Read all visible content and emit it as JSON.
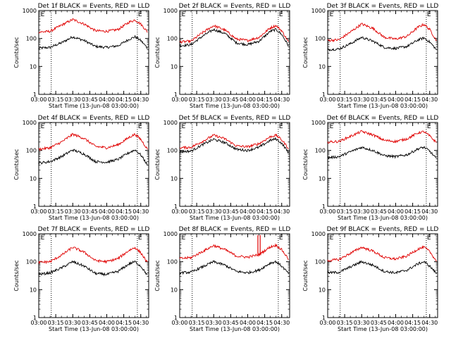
{
  "figure": {
    "colors": {
      "events": "#000000",
      "lld": "#e00000",
      "axis": "#000000",
      "marker": "#000000"
    },
    "xlabel": "Start Time (13-Jun-08 03:00:00)",
    "ylabel": "Counts/sec"
  },
  "chart_data": [
    {
      "type": "line",
      "title": "Det 1f BLACK = Events, RED = LLD",
      "xlabel": "Start Time (13-Jun-08 03:00:00)",
      "ylabel": "Counts/sec",
      "yscale": "log",
      "ylim": [
        1,
        1000
      ],
      "yticks": [
        "1",
        "10",
        "100",
        "1000"
      ],
      "xticks": [
        "03:00",
        "03:15",
        "03:30",
        "03:45",
        "04:00",
        "04:15",
        "04:30"
      ],
      "xlim": [
        "03:00",
        "04:37"
      ],
      "markers": [
        {
          "time": "03:11",
          "label": ""
        },
        {
          "time": "04:27",
          "label": "E"
        },
        {
          "time": "03:01",
          "label": "E"
        }
      ],
      "x": [
        "03:00",
        "03:10",
        "03:20",
        "03:30",
        "03:40",
        "03:50",
        "04:00",
        "04:10",
        "04:20",
        "04:25",
        "04:30",
        "04:36"
      ],
      "series": [
        {
          "name": "BLACK = Events",
          "color": "#000000",
          "values": [
            45,
            48,
            70,
            115,
            85,
            52,
            48,
            55,
            95,
            115,
            85,
            45
          ]
        },
        {
          "name": "RED = LLD",
          "color": "#e00000",
          "values": [
            170,
            180,
            300,
            480,
            330,
            190,
            180,
            210,
            390,
            460,
            330,
            170
          ]
        }
      ]
    },
    {
      "type": "line",
      "title": "Det 2f BLACK = Events, RED = LLD",
      "xlabel": "Start Time (13-Jun-08 03:00:00)",
      "ylabel": "Counts/sec",
      "yscale": "log",
      "ylim": [
        1,
        1000
      ],
      "yticks": [
        "1",
        "10",
        "100",
        "1000"
      ],
      "xticks": [
        "03:00",
        "03:15",
        "03:30",
        "03:45",
        "04:00",
        "04:15",
        "04:30"
      ],
      "xlim": [
        "03:00",
        "04:37"
      ],
      "markers": [
        {
          "time": "03:11",
          "label": ""
        },
        {
          "time": "04:27",
          "label": "E"
        },
        {
          "time": "03:01",
          "label": "E"
        }
      ],
      "x": [
        "03:00",
        "03:10",
        "03:20",
        "03:30",
        "03:40",
        "03:50",
        "04:00",
        "04:10",
        "04:20",
        "04:25",
        "04:30",
        "04:36"
      ],
      "series": [
        {
          "name": "BLACK = Events",
          "color": "#000000",
          "values": [
            55,
            60,
            120,
            210,
            150,
            70,
            60,
            80,
            180,
            210,
            140,
            55
          ]
        },
        {
          "name": "RED = LLD",
          "color": "#e00000",
          "values": [
            75,
            80,
            160,
            290,
            200,
            95,
            85,
            110,
            240,
            290,
            190,
            75
          ]
        }
      ]
    },
    {
      "type": "line",
      "title": "Det 3f BLACK = Events, RED = LLD",
      "xlabel": "Start Time (13-Jun-08 03:00:00)",
      "ylabel": "Counts/sec",
      "yscale": "log",
      "ylim": [
        1,
        1000
      ],
      "yticks": [
        "1",
        "10",
        "100",
        "1000"
      ],
      "xticks": [
        "03:00",
        "03:15",
        "03:30",
        "03:45",
        "04:00",
        "04:15",
        "04:30"
      ],
      "xlim": [
        "03:00",
        "04:37"
      ],
      "markers": [
        {
          "time": "03:11",
          "label": ""
        },
        {
          "time": "04:27",
          "label": "E"
        },
        {
          "time": "03:01",
          "label": "E"
        }
      ],
      "x": [
        "03:00",
        "03:10",
        "03:20",
        "03:30",
        "03:40",
        "03:50",
        "04:00",
        "04:10",
        "04:20",
        "04:25",
        "04:30",
        "04:36"
      ],
      "series": [
        {
          "name": "BLACK = Events",
          "color": "#000000",
          "values": [
            40,
            42,
            65,
            110,
            80,
            48,
            44,
            52,
            90,
            105,
            75,
            40
          ]
        },
        {
          "name": "RED = LLD",
          "color": "#e00000",
          "values": [
            85,
            90,
            170,
            330,
            230,
            110,
            95,
            120,
            260,
            320,
            210,
            85
          ]
        }
      ]
    },
    {
      "type": "line",
      "title": "Det 4f BLACK = Events, RED = LLD",
      "xlabel": "Start Time (13-Jun-08 03:00:00)",
      "ylabel": "Counts/sec",
      "yscale": "log",
      "ylim": [
        1,
        1000
      ],
      "yticks": [
        "1",
        "10",
        "100",
        "1000"
      ],
      "xticks": [
        "03:00",
        "03:15",
        "03:30",
        "03:45",
        "04:00",
        "04:15",
        "04:30"
      ],
      "xlim": [
        "03:00",
        "04:37"
      ],
      "markers": [
        {
          "time": "03:11",
          "label": ""
        },
        {
          "time": "04:27",
          "label": "E"
        },
        {
          "time": "03:01",
          "label": "E"
        }
      ],
      "x": [
        "03:00",
        "03:10",
        "03:20",
        "03:30",
        "03:40",
        "03:50",
        "04:00",
        "04:10",
        "04:20",
        "04:25",
        "04:30",
        "04:36"
      ],
      "series": [
        {
          "name": "BLACK = Events",
          "color": "#000000",
          "values": [
            35,
            40,
            60,
            105,
            75,
            40,
            38,
            48,
            85,
            105,
            70,
            30
          ]
        },
        {
          "name": "RED = LLD",
          "color": "#e00000",
          "values": [
            110,
            125,
            200,
            380,
            270,
            140,
            125,
            160,
            300,
            380,
            250,
            110
          ]
        }
      ]
    },
    {
      "type": "line",
      "title": "Det 5f BLACK = Events, RED = LLD",
      "xlabel": "Start Time (13-Jun-08 03:00:00)",
      "ylabel": "Counts/sec",
      "yscale": "log",
      "ylim": [
        1,
        1000
      ],
      "yticks": [
        "1",
        "10",
        "100",
        "1000"
      ],
      "xticks": [
        "03:00",
        "03:15",
        "03:30",
        "03:45",
        "04:00",
        "04:15",
        "04:30"
      ],
      "xlim": [
        "03:00",
        "04:37"
      ],
      "markers": [
        {
          "time": "03:11",
          "label": ""
        },
        {
          "time": "04:27",
          "label": "E"
        },
        {
          "time": "03:01",
          "label": "E"
        }
      ],
      "x": [
        "03:00",
        "03:10",
        "03:20",
        "03:30",
        "03:40",
        "03:50",
        "04:00",
        "04:10",
        "04:20",
        "04:25",
        "04:30",
        "04:36"
      ],
      "series": [
        {
          "name": "BLACK = Events",
          "color": "#000000",
          "values": [
            90,
            95,
            160,
            250,
            190,
            110,
            100,
            130,
            230,
            260,
            180,
            85
          ]
        },
        {
          "name": "RED = LLD",
          "color": "#e00000",
          "values": [
            125,
            130,
            210,
            350,
            260,
            145,
            135,
            175,
            310,
            350,
            240,
            120
          ]
        }
      ]
    },
    {
      "type": "line",
      "title": "Det 6f BLACK = Events, RED = LLD",
      "xlabel": "Start Time (13-Jun-08 03:00:00)",
      "ylabel": "Counts/sec",
      "yscale": "log",
      "ylim": [
        1,
        1000
      ],
      "yticks": [
        "1",
        "10",
        "100",
        "1000"
      ],
      "xticks": [
        "03:00",
        "03:15",
        "03:30",
        "03:45",
        "04:00",
        "04:15",
        "04:30"
      ],
      "xlim": [
        "03:00",
        "04:37"
      ],
      "markers": [
        {
          "time": "03:11",
          "label": ""
        },
        {
          "time": "04:27",
          "label": "E"
        },
        {
          "time": "03:01",
          "label": "E"
        }
      ],
      "x": [
        "03:00",
        "03:10",
        "03:20",
        "03:30",
        "03:40",
        "03:50",
        "04:00",
        "04:10",
        "04:20",
        "04:25",
        "04:30",
        "04:36"
      ],
      "series": [
        {
          "name": "BLACK = Events",
          "color": "#000000",
          "values": [
            55,
            60,
            90,
            130,
            100,
            65,
            60,
            70,
            115,
            130,
            95,
            50
          ]
        },
        {
          "name": "RED = LLD",
          "color": "#e00000",
          "values": [
            200,
            210,
            320,
            480,
            360,
            230,
            210,
            260,
            430,
            470,
            330,
            190
          ]
        }
      ]
    },
    {
      "type": "line",
      "title": "Det 7f BLACK = Events, RED = LLD",
      "xlabel": "Start Time (13-Jun-08 03:00:00)",
      "ylabel": "Counts/sec",
      "yscale": "log",
      "ylim": [
        1,
        1000
      ],
      "yticks": [
        "1",
        "10",
        "100",
        "1000"
      ],
      "xticks": [
        "03:00",
        "03:15",
        "03:30",
        "03:45",
        "04:00",
        "04:15",
        "04:30"
      ],
      "xlim": [
        "03:00",
        "04:37"
      ],
      "markers": [
        {
          "time": "03:11",
          "label": ""
        },
        {
          "time": "04:27",
          "label": "E"
        },
        {
          "time": "03:01",
          "label": "E"
        }
      ],
      "x": [
        "03:00",
        "03:10",
        "03:20",
        "03:30",
        "03:40",
        "03:50",
        "04:00",
        "04:10",
        "04:20",
        "04:25",
        "04:30",
        "04:36"
      ],
      "series": [
        {
          "name": "BLACK = Events",
          "color": "#000000",
          "values": [
            35,
            40,
            60,
            100,
            70,
            38,
            35,
            45,
            85,
            100,
            70,
            32
          ]
        },
        {
          "name": "RED = LLD",
          "color": "#e00000",
          "values": [
            95,
            100,
            170,
            330,
            220,
            110,
            100,
            130,
            260,
            320,
            210,
            90
          ]
        }
      ]
    },
    {
      "type": "line",
      "title": "Det 8f BLACK = Events, RED = LLD",
      "xlabel": "Start Time (13-Jun-08 03:00:00)",
      "ylabel": "Counts/sec",
      "yscale": "log",
      "ylim": [
        1,
        1000
      ],
      "yticks": [
        "1",
        "10",
        "100",
        "1000"
      ],
      "xticks": [
        "03:00",
        "03:15",
        "03:30",
        "03:45",
        "04:00",
        "04:15",
        "04:30"
      ],
      "xlim": [
        "03:00",
        "04:37"
      ],
      "markers": [
        {
          "time": "03:11",
          "label": ""
        },
        {
          "time": "04:27",
          "label": "E"
        },
        {
          "time": "03:01",
          "label": "E"
        }
      ],
      "x": [
        "03:00",
        "03:10",
        "03:20",
        "03:30",
        "03:40",
        "03:50",
        "04:00",
        "04:10",
        "04:20",
        "04:25",
        "04:30",
        "04:36"
      ],
      "series": [
        {
          "name": "BLACK = Events",
          "color": "#000000",
          "values": [
            40,
            42,
            65,
            100,
            75,
            45,
            40,
            50,
            90,
            100,
            70,
            38
          ]
        },
        {
          "name": "RED = LLD",
          "color": "#e00000",
          "values": [
            130,
            140,
            230,
            380,
            270,
            160,
            145,
            180,
            340,
            390,
            270,
            125
          ]
        }
      ],
      "spikes": [
        {
          "series": "RED = LLD",
          "time": "04:09",
          "value": 900
        },
        {
          "series": "RED = LLD",
          "time": "04:11",
          "value": 900
        }
      ]
    },
    {
      "type": "line",
      "title": "Det 9f BLACK = Events, RED = LLD",
      "xlabel": "Start Time (13-Jun-08 03:00:00)",
      "ylabel": "Counts/sec",
      "yscale": "log",
      "ylim": [
        1,
        1000
      ],
      "yticks": [
        "1",
        "10",
        "100",
        "1000"
      ],
      "xticks": [
        "03:00",
        "03:15",
        "03:30",
        "03:45",
        "04:00",
        "04:15",
        "04:30"
      ],
      "xlim": [
        "03:00",
        "04:37"
      ],
      "markers": [
        {
          "time": "03:11",
          "label": ""
        },
        {
          "time": "04:27",
          "label": "E"
        },
        {
          "time": "03:01",
          "label": "E"
        }
      ],
      "x": [
        "03:00",
        "03:10",
        "03:20",
        "03:30",
        "03:40",
        "03:50",
        "04:00",
        "04:10",
        "04:20",
        "04:25",
        "04:30",
        "04:36"
      ],
      "series": [
        {
          "name": "BLACK = Events",
          "color": "#000000",
          "values": [
            40,
            42,
            65,
            100,
            75,
            45,
            40,
            50,
            85,
            100,
            70,
            38
          ]
        },
        {
          "name": "RED = LLD",
          "color": "#e00000",
          "values": [
            110,
            120,
            200,
            330,
            240,
            140,
            125,
            160,
            290,
            330,
            230,
            105
          ]
        }
      ]
    }
  ]
}
